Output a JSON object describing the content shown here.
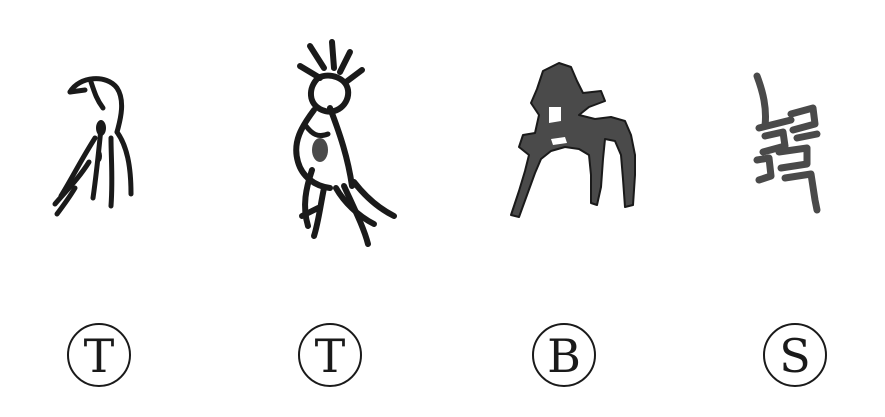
{
  "figure": {
    "items": [
      {
        "glyph": "bird-glyph",
        "label": "T"
      },
      {
        "glyph": "crested-bird-glyph",
        "label": "T"
      },
      {
        "glyph": "figure-glyph",
        "label": "B"
      },
      {
        "glyph": "script-glyph",
        "label": "S"
      }
    ],
    "colors": {
      "ink": "#1a1a1a",
      "fill": "#4a4a4a",
      "background": "#ffffff"
    }
  }
}
